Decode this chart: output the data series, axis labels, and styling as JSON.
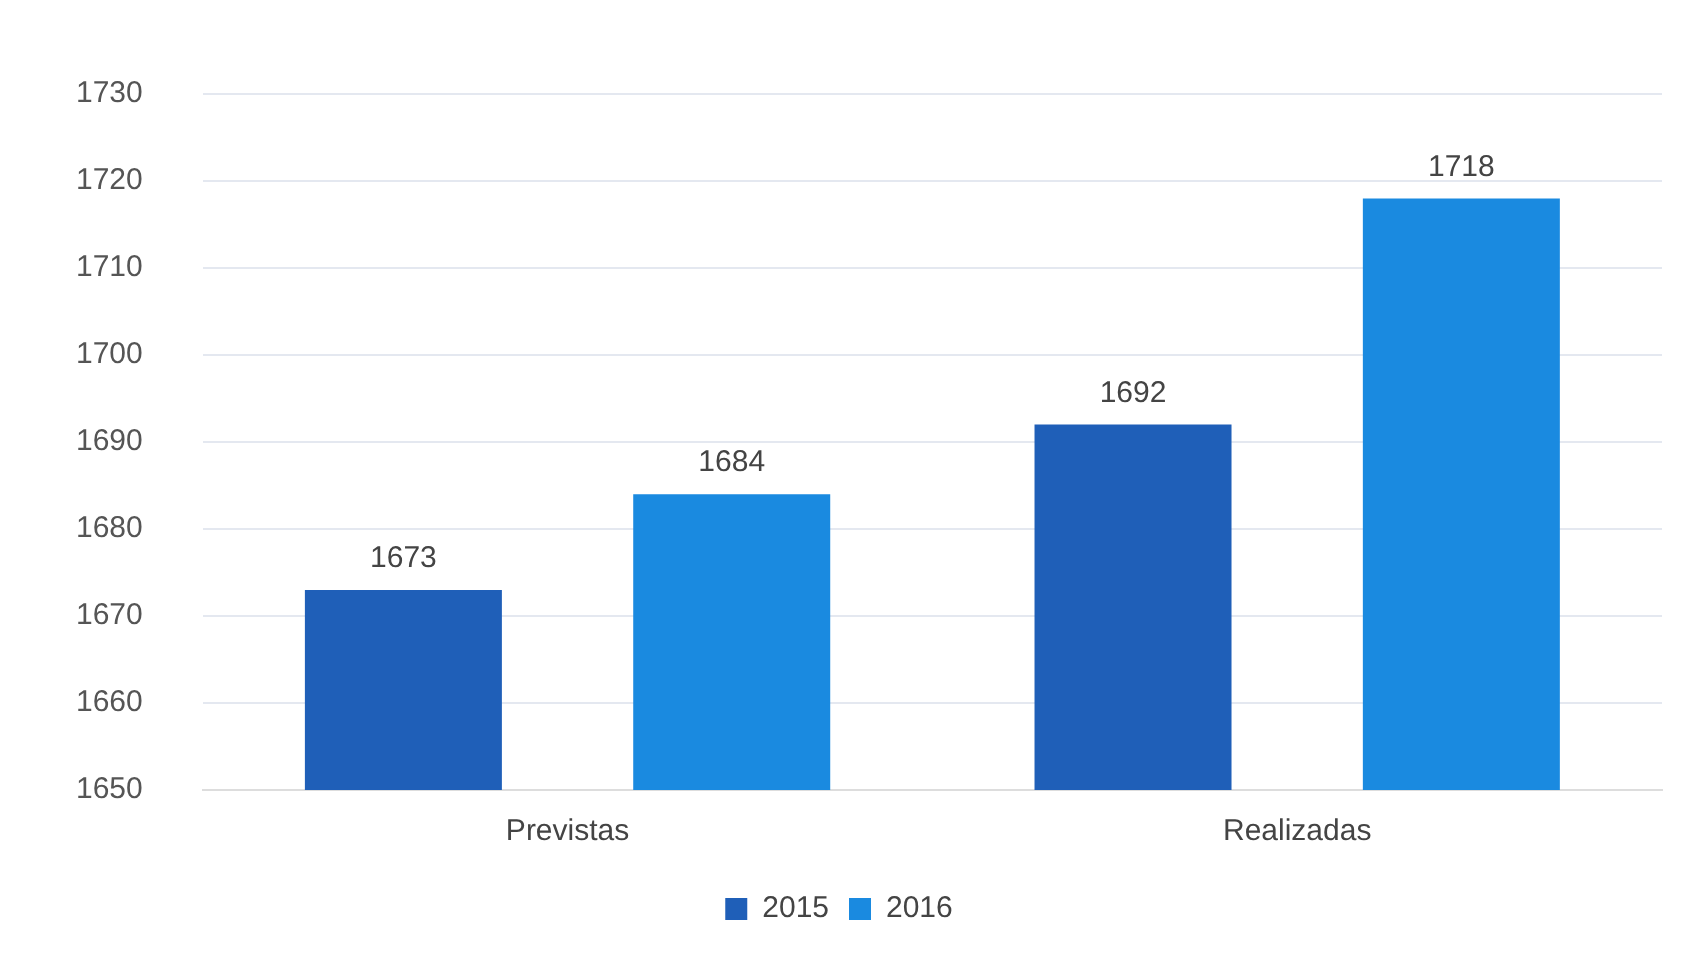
{
  "chart_data": {
    "type": "bar",
    "categories": [
      "Previstas",
      "Realizadas"
    ],
    "series": [
      {
        "name": "2015",
        "color": "#1f5fb8",
        "values": [
          1673,
          1692
        ]
      },
      {
        "name": "2016",
        "color": "#1a8ae0",
        "values": [
          1684,
          1718
        ]
      }
    ],
    "ylim": [
      1650,
      1730
    ],
    "yticks": [
      1650,
      1660,
      1670,
      1680,
      1690,
      1700,
      1710,
      1720,
      1730
    ],
    "grid": "y",
    "legend": "bottom",
    "data_labels": true
  }
}
